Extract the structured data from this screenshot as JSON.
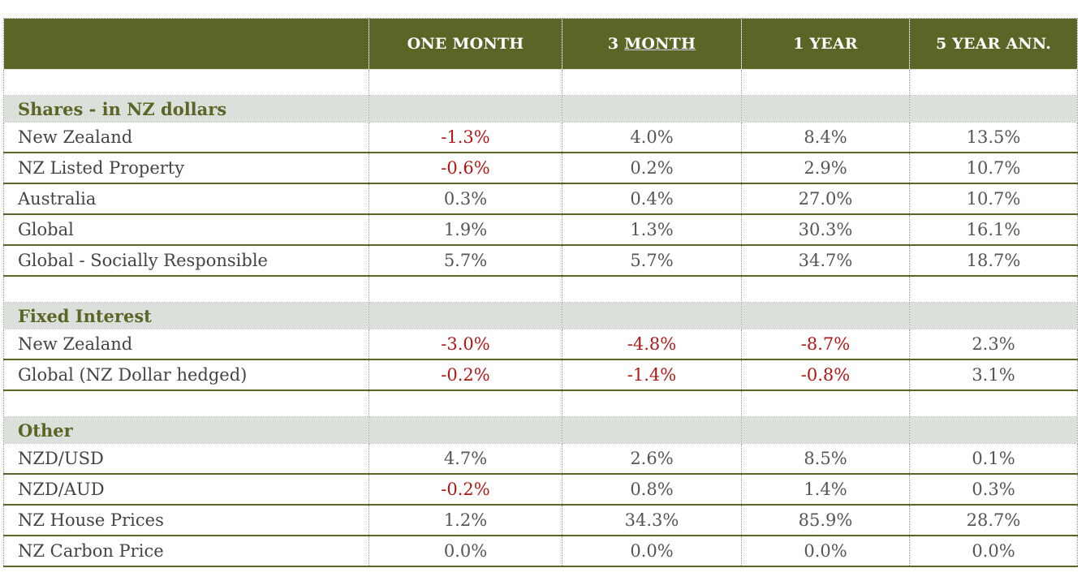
{
  "columns": [
    "",
    "ONE MONTH",
    "3 MONTH",
    "1 YEAR",
    "5 YEAR ANN."
  ],
  "header_3m_prefix": "3",
  "header_3m_underlined": "MONTH",
  "colors": {
    "header_bg": "#5a6526",
    "section_bg": "#dbe0db",
    "negative": "#b01818",
    "section_text": "#5a6526"
  },
  "sections": [
    {
      "title": "Shares - in NZ dollars",
      "rows": [
        {
          "label": "New Zealand",
          "values": [
            "-1.3%",
            "4.0%",
            "8.4%",
            "13.5%"
          ]
        },
        {
          "label": "NZ Listed Property",
          "values": [
            "-0.6%",
            "0.2%",
            "2.9%",
            "10.7%"
          ]
        },
        {
          "label": "Australia",
          "values": [
            "0.3%",
            "0.4%",
            "27.0%",
            "10.7%"
          ]
        },
        {
          "label": "Global",
          "values": [
            "1.9%",
            "1.3%",
            "30.3%",
            "16.1%"
          ]
        },
        {
          "label": "Global - Socially Responsible",
          "values": [
            "5.7%",
            "5.7%",
            "34.7%",
            "18.7%"
          ]
        }
      ]
    },
    {
      "title": "Fixed Interest",
      "rows": [
        {
          "label": "New Zealand",
          "values": [
            "-3.0%",
            "-4.8%",
            "-8.7%",
            "2.3%"
          ]
        },
        {
          "label": "Global (NZ Dollar hedged)",
          "values": [
            "-0.2%",
            "-1.4%",
            "-0.8%",
            "3.1%"
          ]
        }
      ]
    },
    {
      "title": "Other",
      "rows": [
        {
          "label": "NZD/USD",
          "values": [
            "4.7%",
            "2.6%",
            "8.5%",
            "0.1%"
          ]
        },
        {
          "label": "NZD/AUD",
          "values": [
            "-0.2%",
            "0.8%",
            "1.4%",
            "0.3%"
          ]
        },
        {
          "label": "NZ House Prices",
          "values": [
            "1.2%",
            "34.3%",
            "85.9%",
            "28.7%"
          ]
        },
        {
          "label": "NZ Carbon Price",
          "values": [
            "0.0%",
            "0.0%",
            "0.0%",
            "0.0%"
          ]
        }
      ]
    }
  ]
}
